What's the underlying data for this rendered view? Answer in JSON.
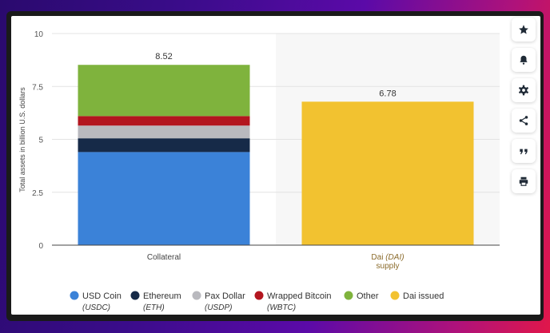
{
  "chart_data": {
    "type": "bar",
    "stacked": true,
    "categories": [
      "Collateral",
      "Dai (DAI) supply"
    ],
    "category_labels": [
      {
        "lines": [
          {
            "parts": [
              {
                "text": "Collateral",
                "italic": false
              }
            ]
          }
        ]
      },
      {
        "lines": [
          {
            "parts": [
              {
                "text": "Dai ",
                "italic": false
              },
              {
                "text": "(DAI)",
                "italic": true
              }
            ]
          },
          {
            "parts": [
              {
                "text": "supply",
                "italic": false
              }
            ]
          }
        ]
      }
    ],
    "series": [
      {
        "name": "USD Coin",
        "sub": "(USDC)",
        "color": "#3b82d8",
        "values": [
          4.4,
          0
        ]
      },
      {
        "name": "Ethereum",
        "sub": "(ETH)",
        "color": "#162a48",
        "values": [
          0.65,
          0
        ]
      },
      {
        "name": "Pax Dollar",
        "sub": "(USDP)",
        "color": "#b9b9be",
        "values": [
          0.6,
          0
        ]
      },
      {
        "name": "Wrapped Bitcoin",
        "sub": "(WBTC)",
        "color": "#b3161f",
        "values": [
          0.45,
          0
        ]
      },
      {
        "name": "Other",
        "sub": "",
        "color": "#7fb33d",
        "values": [
          2.42,
          0
        ]
      },
      {
        "name": "Dai issued",
        "sub": "",
        "color": "#f2c230",
        "values": [
          0,
          6.78
        ]
      }
    ],
    "totals": [
      "8.52",
      "6.78"
    ],
    "ylabel": "Total assets in billion U.S. dollars",
    "yticks": [
      "0",
      "2.5",
      "5",
      "7.5",
      "10"
    ],
    "ytick_values": [
      0,
      2.5,
      5,
      7.5,
      10
    ],
    "ylim": [
      0,
      10
    ],
    "grid": true,
    "legend_position": "bottom"
  },
  "toolbar": {
    "buttons": [
      {
        "name": "star-icon"
      },
      {
        "name": "bell-icon"
      },
      {
        "name": "gear-icon"
      },
      {
        "name": "share-icon"
      },
      {
        "name": "quote-icon"
      },
      {
        "name": "print-icon"
      }
    ]
  }
}
